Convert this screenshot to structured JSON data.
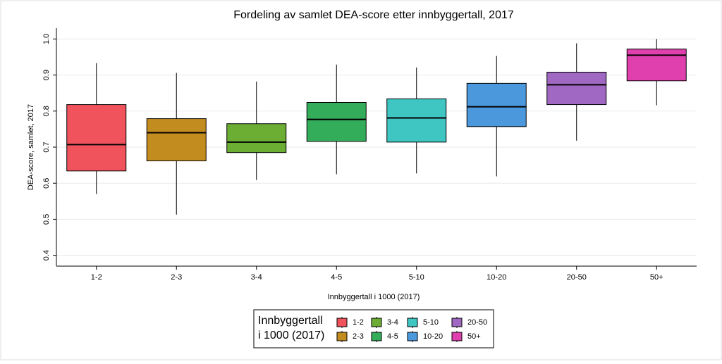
{
  "chart_data": {
    "type": "box",
    "title": "Fordeling av samlet DEA-score etter innbyggertall, 2017",
    "x_label": "Innbyggertall i 1000 (2017)",
    "y_label": "DEA-score, samlet, 2017",
    "categories": [
      "1-2",
      "2-3",
      "3-4",
      "4-5",
      "5-10",
      "10-20",
      "20-50",
      "50+"
    ],
    "colors": [
      "#f1535d",
      "#c38c1f",
      "#6cae34",
      "#34ad5b",
      "#3fc6c2",
      "#4c98dc",
      "#a068c2",
      "#e040ae"
    ],
    "whislo": [
      0.57,
      0.513,
      0.609,
      0.625,
      0.627,
      0.619,
      0.718,
      0.816
    ],
    "q1": [
      0.634,
      0.662,
      0.685,
      0.716,
      0.714,
      0.757,
      0.818,
      0.884
    ],
    "median": [
      0.707,
      0.74,
      0.714,
      0.777,
      0.781,
      0.812,
      0.873,
      0.955
    ],
    "q3": [
      0.818,
      0.779,
      0.765,
      0.824,
      0.834,
      0.877,
      0.908,
      0.972
    ],
    "whishi": [
      0.933,
      0.906,
      0.882,
      0.929,
      0.921,
      0.953,
      0.988,
      1.0
    ],
    "ylim": [
      0.37,
      1.03
    ],
    "yticks": [
      0.4,
      0.5,
      0.6,
      0.7,
      0.8,
      0.9,
      {
        "value": 1,
        "label": "1.0"
      }
    ],
    "grid": true,
    "legend_title": [
      "Innbyggertall",
      "i 1000 (2017)"
    ],
    "legend_position": "bottom"
  }
}
